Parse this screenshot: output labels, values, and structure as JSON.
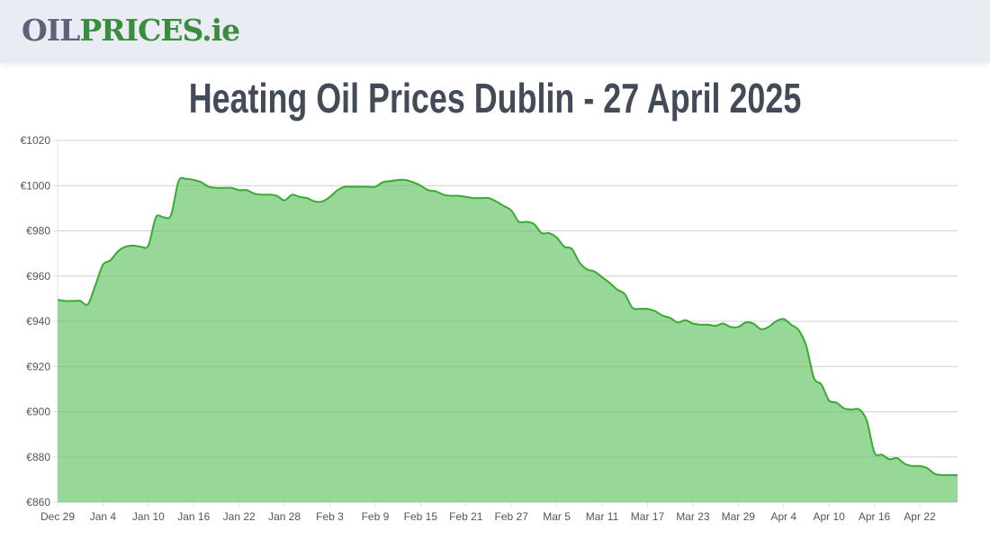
{
  "header": {
    "logo_part1": "OIL",
    "logo_part2": "PRICES.ie"
  },
  "page_title": "Heating Oil Prices Dublin - 27 April 2025",
  "colors": {
    "line": "#3aaa35",
    "fill": "#91d591",
    "grid": "#e0e0e0",
    "logo_grey": "#5a6378",
    "logo_green": "#3a8c3f"
  },
  "chart_data": {
    "type": "area",
    "title": "",
    "xlabel": "",
    "ylabel": "",
    "ylim": [
      860,
      1020
    ],
    "y_ticks": [
      860,
      880,
      900,
      920,
      940,
      960,
      980,
      1000,
      1020
    ],
    "y_tick_prefix": "€",
    "x_tick_labels": [
      "Dec 29",
      "Jan 4",
      "Jan 10",
      "Jan 16",
      "Jan 22",
      "Jan 28",
      "Feb 3",
      "Feb 9",
      "Feb 15",
      "Feb 21",
      "Feb 27",
      "Mar 5",
      "Mar 11",
      "Mar 17",
      "Mar 23",
      "Mar 29",
      "Apr 4",
      "Apr 10",
      "Apr 16",
      "Apr 22"
    ],
    "grid": true,
    "x_range": [
      "2024-12-29",
      "2025-04-27"
    ],
    "values": [
      949.5,
      949,
      949,
      949,
      947.5,
      956,
      965,
      967,
      971,
      973,
      973.5,
      973,
      973.5,
      986,
      986,
      987,
      1002,
      1003,
      1002.5,
      1001.5,
      999.5,
      999,
      999,
      999,
      998,
      998,
      996.5,
      996,
      996,
      995.5,
      993.5,
      996,
      995,
      994.5,
      993,
      993,
      995,
      998,
      999.5,
      999.5,
      999.5,
      999.5,
      999.5,
      1001.5,
      1002,
      1002.5,
      1002.5,
      1001.5,
      1000,
      998,
      997.5,
      996,
      995.5,
      995.5,
      995,
      994.5,
      994.5,
      994.5,
      993,
      991,
      989,
      984,
      984,
      983,
      979,
      979,
      977,
      973,
      972,
      966,
      963,
      962,
      959.5,
      957,
      954,
      952,
      946,
      945.5,
      945.5,
      944.5,
      942.5,
      941.5,
      939.5,
      940.5,
      939,
      938.5,
      938.5,
      938,
      939,
      937.5,
      937.5,
      939.5,
      939,
      936.5,
      937.5,
      940,
      941,
      938.5,
      936,
      929,
      915,
      912,
      905,
      904,
      901.5,
      901,
      901,
      896,
      882,
      881,
      879,
      879.5,
      877,
      876,
      876,
      875,
      872.5,
      872,
      872,
      872
    ]
  }
}
